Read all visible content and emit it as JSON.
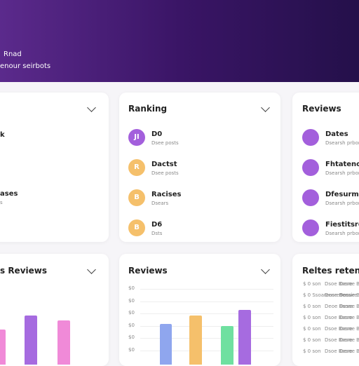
{
  "header": {
    "title": "Rnad",
    "subtitle": "enour seirbots"
  },
  "cards": [
    {
      "title": "",
      "items": [
        {
          "label": "k"
        },
        {
          "label": "ases",
          "sub": "s"
        }
      ]
    },
    {
      "title": "Ranking",
      "items": [
        {
          "icon": "JI",
          "label": "D0",
          "sub": "Dsee posts"
        },
        {
          "icon": "R",
          "label": "Dactst",
          "sub": "Dsee posts"
        },
        {
          "icon": "B",
          "label": "Racises",
          "sub": "Dsears"
        },
        {
          "icon": "B",
          "label": "D6",
          "sub": "Dsts"
        }
      ]
    },
    {
      "title": "Reviews",
      "items": [
        {
          "label": "Dates",
          "sub": "Dsearsh prbons"
        },
        {
          "label": "Fhtatenor",
          "sub": "Dsearsh prbons"
        },
        {
          "label": "Dfesurmor",
          "sub": "Dsearsh prbons"
        },
        {
          "label": "Fiestitsre",
          "sub": "Dsearsh prbons"
        }
      ]
    },
    {
      "title": "s Reviews"
    },
    {
      "title": "Reviews",
      "axis": [
        "$0",
        "$0",
        "$0",
        "$0",
        "$0",
        "$0"
      ]
    },
    {
      "title": "Reltes retens",
      "rows": [
        [
          "$ 0 son",
          "Dsoe Bsore",
          "Desoe Bsore"
        ],
        [
          "$ 0 Ssoareusrenons",
          "Deoe Beosire",
          "Desoe Bsore"
        ],
        [
          "$ 0 son",
          "Deoe Bsore",
          "Desoe Bsore"
        ],
        [
          "$ 0 son",
          "Dsoe Bsore",
          "Desoe Bsore"
        ],
        [
          "$ 0 son",
          "Dsoe Bsore",
          "Desoe Bsore"
        ],
        [
          "$ 0 son",
          "Dsoe Bsore",
          "Desoe Bsore"
        ],
        [
          "$ 0 son",
          "Dsoe Bsore",
          "Desoe Bsore"
        ]
      ]
    }
  ]
}
